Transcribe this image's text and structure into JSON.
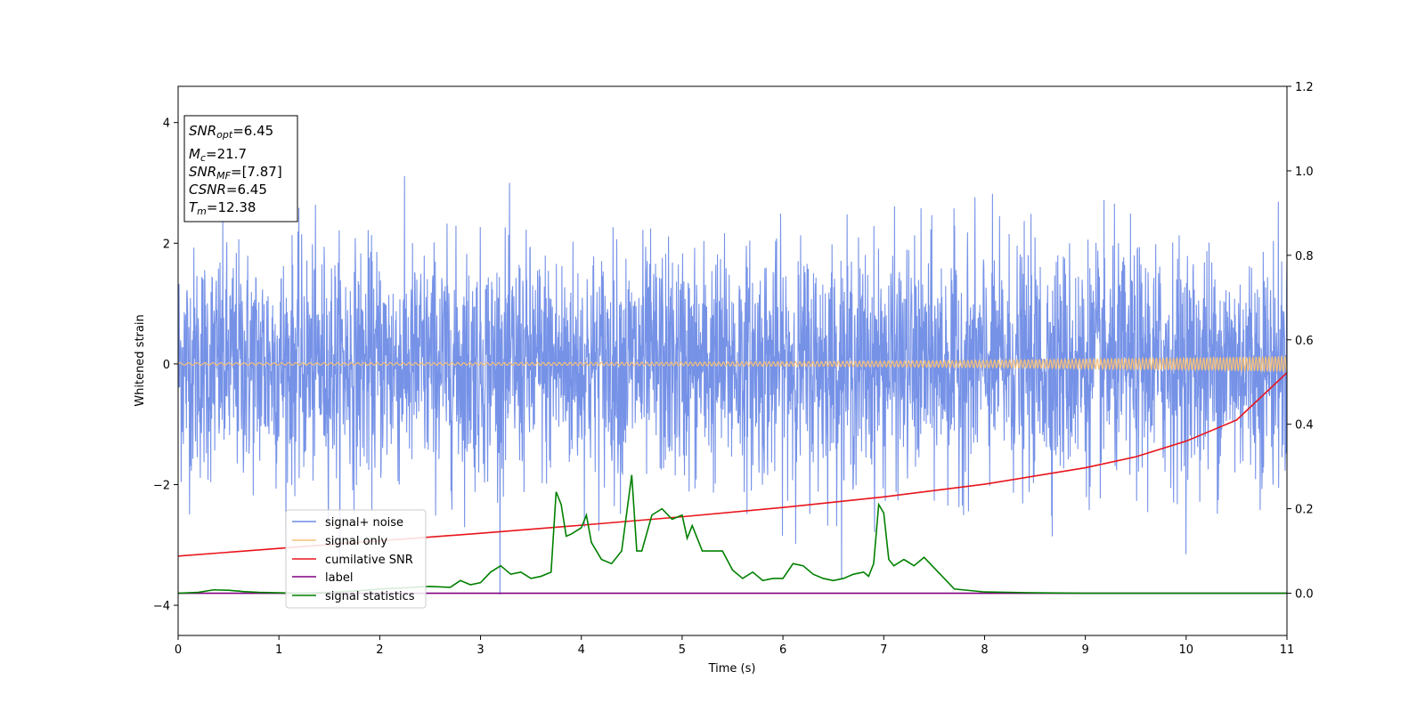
{
  "chart_data": {
    "type": "line",
    "xlabel": "Time (s)",
    "ylabel": "Whitened strain",
    "xlim": [
      0,
      11
    ],
    "ylim": [
      -4.5,
      4.6
    ],
    "y2lim": [
      -0.1,
      1.2
    ],
    "x_ticks": [
      "0",
      "1",
      "2",
      "3",
      "4",
      "5",
      "6",
      "7",
      "8",
      "9",
      "10",
      "11"
    ],
    "y_ticks": [
      "4",
      "2",
      "0",
      "−2",
      "−4"
    ],
    "y_tick_values": [
      4,
      2,
      0,
      -2,
      -4
    ],
    "y2_ticks": [
      "1.2",
      "1.0",
      "0.8",
      "0.6",
      "0.4",
      "0.2",
      "0.0"
    ],
    "y2_tick_values": [
      1.2,
      1.0,
      0.8,
      0.6,
      0.4,
      0.2,
      0.0
    ],
    "grid": false,
    "legend_position": "lower-left",
    "stats_box": {
      "snr_opt": {
        "base": "SNR",
        "sub": "opt",
        "value": "=6.45"
      },
      "mc": {
        "base": "M",
        "sub": "c",
        "value": "=21.7"
      },
      "snr_mf": {
        "base": "SNR",
        "sub": "MF",
        "value": "=[7.87]"
      },
      "csnr": {
        "base": "CSNR",
        "value": "=6.45"
      },
      "tm": {
        "base": "T",
        "sub": "m",
        "value": "=12.38"
      }
    },
    "series": [
      {
        "name": "signal+ noise",
        "axis": "left",
        "color": "#6f8ce6",
        "description_noise_std": 0.95,
        "x_range": [
          0,
          11
        ]
      },
      {
        "name": "signal only",
        "axis": "left",
        "color": "#f5c07a",
        "amplitude_start": 0.02,
        "amplitude_end": 0.13,
        "x_range": [
          0,
          11
        ]
      },
      {
        "name": "cumilative SNR",
        "axis": "right",
        "color": "#e8141b",
        "x": [
          0,
          1,
          2,
          3,
          4,
          5,
          6,
          7,
          8,
          9,
          9.5,
          10,
          10.5,
          11
        ],
        "values": [
          0.088,
          0.106,
          0.124,
          0.142,
          0.161,
          0.181,
          0.203,
          0.228,
          0.258,
          0.297,
          0.323,
          0.36,
          0.41,
          0.522
        ]
      },
      {
        "name": "label",
        "axis": "right",
        "color": "#800080",
        "x": [
          0,
          11
        ],
        "values": [
          0.0,
          0.0
        ]
      },
      {
        "name": "signal statistics",
        "axis": "right",
        "color": "#008000",
        "x": [
          0,
          0.2,
          0.35,
          0.5,
          0.65,
          0.8,
          1.0,
          1.2,
          1.5,
          1.8,
          2.0,
          2.2,
          2.4,
          2.5,
          2.7,
          2.8,
          2.9,
          3.0,
          3.1,
          3.2,
          3.3,
          3.4,
          3.5,
          3.6,
          3.7,
          3.75,
          3.8,
          3.85,
          3.9,
          4.0,
          4.05,
          4.1,
          4.2,
          4.3,
          4.4,
          4.5,
          4.55,
          4.6,
          4.7,
          4.8,
          4.9,
          5.0,
          5.05,
          5.1,
          5.2,
          5.3,
          5.4,
          5.5,
          5.6,
          5.7,
          5.8,
          5.9,
          6.0,
          6.1,
          6.2,
          6.3,
          6.4,
          6.5,
          6.6,
          6.7,
          6.8,
          6.85,
          6.9,
          6.95,
          7.0,
          7.05,
          7.1,
          7.2,
          7.3,
          7.4,
          7.5,
          7.7,
          8.0,
          8.5,
          9.0,
          11
        ],
        "values": [
          0.0,
          0.002,
          0.008,
          0.007,
          0.004,
          0.002,
          0.001,
          0.0,
          0.002,
          0.006,
          0.01,
          0.012,
          0.015,
          0.016,
          0.014,
          0.03,
          0.02,
          0.025,
          0.05,
          0.065,
          0.045,
          0.05,
          0.035,
          0.04,
          0.05,
          0.24,
          0.21,
          0.135,
          0.14,
          0.155,
          0.185,
          0.12,
          0.08,
          0.07,
          0.1,
          0.28,
          0.1,
          0.1,
          0.185,
          0.2,
          0.175,
          0.185,
          0.13,
          0.16,
          0.1,
          0.1,
          0.1,
          0.055,
          0.035,
          0.05,
          0.03,
          0.035,
          0.035,
          0.07,
          0.065,
          0.045,
          0.035,
          0.03,
          0.035,
          0.045,
          0.05,
          0.04,
          0.07,
          0.21,
          0.19,
          0.08,
          0.065,
          0.08,
          0.065,
          0.085,
          0.06,
          0.01,
          0.003,
          0.001,
          0.0,
          0.0
        ]
      }
    ]
  }
}
